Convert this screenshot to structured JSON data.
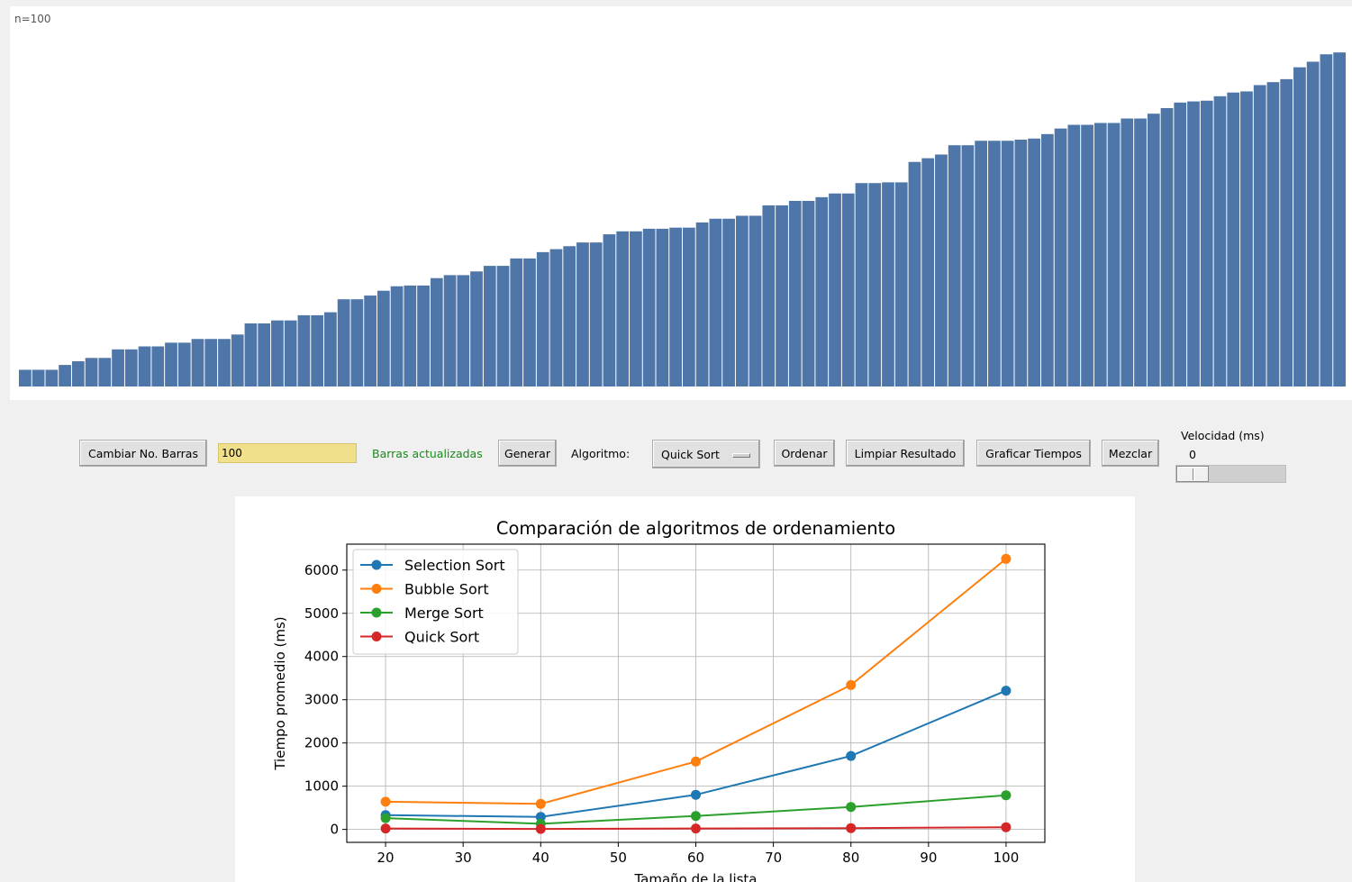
{
  "bars": {
    "count_label": "n=100",
    "color": "#4f76a8",
    "ymax": 1000,
    "values": [
      45,
      45,
      45,
      58,
      68,
      77,
      77,
      100,
      100,
      108,
      108,
      118,
      118,
      128,
      128,
      128,
      140,
      170,
      170,
      178,
      178,
      192,
      192,
      200,
      235,
      235,
      245,
      258,
      270,
      272,
      272,
      292,
      300,
      300,
      310,
      325,
      325,
      345,
      345,
      362,
      370,
      378,
      388,
      388,
      410,
      418,
      418,
      425,
      425,
      428,
      428,
      442,
      452,
      452,
      460,
      460,
      488,
      488,
      500,
      500,
      510,
      520,
      520,
      548,
      548,
      550,
      550,
      605,
      615,
      625,
      650,
      650,
      662,
      662,
      662,
      665,
      668,
      680,
      695,
      705,
      705,
      710,
      710,
      722,
      722,
      735,
      750,
      765,
      768,
      770,
      782,
      792,
      795,
      812,
      820,
      828,
      860,
      875,
      895,
      900
    ]
  },
  "controls": {
    "change_bars_label": "Cambiar No. Barras",
    "bars_input_value": "100",
    "status_text": "Barras actualizadas",
    "status_color": "#1a8a1a",
    "generate_label": "Generar",
    "algorithm_label": "Algoritmo:",
    "algorithm_selected": "Quick Sort",
    "sort_label": "Ordenar",
    "clear_label": "Limpiar Resultado",
    "plot_label": "Graficar Tiempos",
    "shuffle_label": "Mezclar",
    "speed_label": "Velocidad (ms)",
    "speed_value": "0"
  },
  "chart_data": {
    "type": "line",
    "title": "Comparación de algoritmos de ordenamiento",
    "xlabel": "Tamaño de la lista",
    "ylabel": "Tiempo promedio (ms)",
    "x": [
      20,
      40,
      60,
      80,
      100
    ],
    "xlim": [
      15,
      105
    ],
    "ylim": [
      -300,
      6600
    ],
    "xticks": [
      20,
      30,
      40,
      50,
      60,
      70,
      80,
      90,
      100
    ],
    "yticks": [
      0,
      1000,
      2000,
      3000,
      4000,
      5000,
      6000
    ],
    "grid": true,
    "legend_position": "upper-left",
    "series": [
      {
        "name": "Selection Sort",
        "color": "#1f77b4",
        "values": [
          330,
          290,
          800,
          1700,
          3210
        ]
      },
      {
        "name": "Bubble Sort",
        "color": "#ff7f0e",
        "values": [
          640,
          590,
          1570,
          3340,
          6260
        ]
      },
      {
        "name": "Merge Sort",
        "color": "#2ca02c",
        "values": [
          260,
          130,
          310,
          520,
          790
        ]
      },
      {
        "name": "Quick Sort",
        "color": "#d62728",
        "values": [
          20,
          10,
          20,
          30,
          50
        ]
      }
    ]
  }
}
